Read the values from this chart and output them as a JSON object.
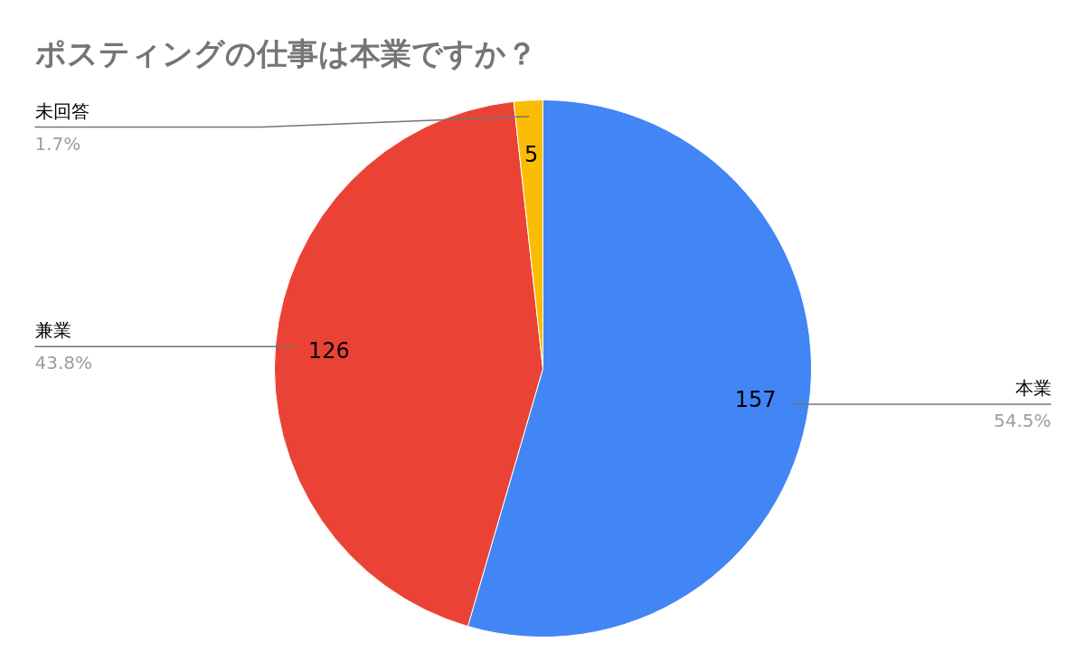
{
  "chart_data": {
    "type": "pie",
    "title": "ポスティングの仕事は本業ですか？",
    "categories": [
      "本業",
      "兼業",
      "未回答"
    ],
    "values": [
      157,
      126,
      5
    ],
    "colors": [
      "#4285f4",
      "#ea4335",
      "#fbbc04"
    ],
    "data_labels": true,
    "annotations": [
      {
        "text": "54.5%",
        "x": "本業"
      },
      {
        "text": "43.8%",
        "x": "兼業"
      },
      {
        "text": "1.7%",
        "x": "未回答"
      }
    ]
  }
}
